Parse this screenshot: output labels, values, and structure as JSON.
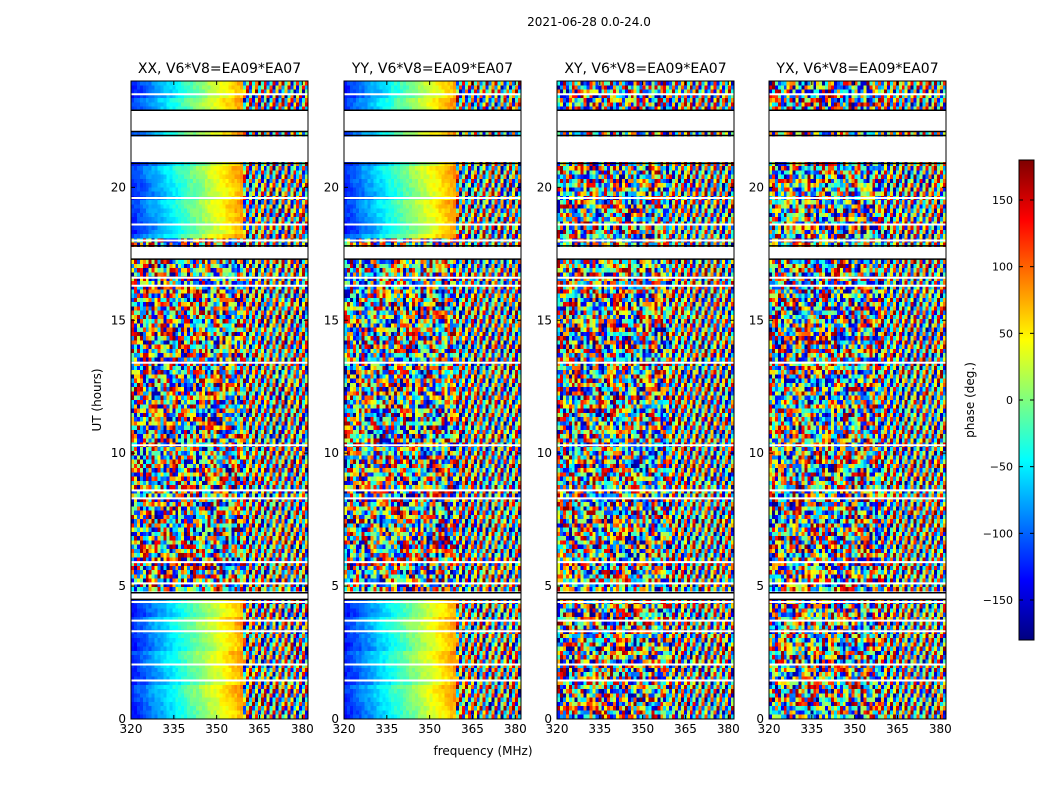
{
  "figure": {
    "suptitle": "2021-06-28 0.0-24.0",
    "ylabel": "UT (hours)",
    "xlabel": "frequency (MHz)"
  },
  "colorbar": {
    "label": "phase (deg.)",
    "range": [
      -180,
      180
    ],
    "ticks": [
      150,
      100,
      50,
      0,
      -50,
      -100,
      -150
    ],
    "tick_labels": [
      "150",
      "100",
      "50",
      "0",
      "−50",
      "−100",
      "−150"
    ],
    "colormap": "jet",
    "colors": [
      "#00007f",
      "#0000ff",
      "#007fff",
      "#00ffff",
      "#7fff7f",
      "#ffff00",
      "#ff7f00",
      "#ff0000",
      "#7f0000"
    ]
  },
  "chart_data": [
    {
      "type": "heatmap",
      "title": "XX, V6*V8=EA09*EA07",
      "xlim": [
        320,
        382
      ],
      "ylim": [
        0,
        24
      ],
      "xticks": [
        320,
        335,
        350,
        365,
        380
      ],
      "yticks": [
        0,
        5,
        10,
        15,
        20
      ],
      "pattern": "parallel"
    },
    {
      "type": "heatmap",
      "title": "YY, V6*V8=EA09*EA07",
      "xlim": [
        320,
        382
      ],
      "ylim": [
        0,
        24
      ],
      "xticks": [
        320,
        335,
        350,
        365,
        380
      ],
      "yticks": [
        0,
        5,
        10,
        15,
        20
      ],
      "pattern": "parallel"
    },
    {
      "type": "heatmap",
      "title": "XY, V6*V8=EA09*EA07",
      "xlim": [
        320,
        382
      ],
      "ylim": [
        0,
        24
      ],
      "xticks": [
        320,
        335,
        350,
        365,
        380
      ],
      "yticks": [
        0,
        5,
        10,
        15,
        20
      ],
      "pattern": "cross"
    },
    {
      "type": "heatmap",
      "title": "YX, V6*V8=EA09*EA07",
      "xlim": [
        320,
        382
      ],
      "ylim": [
        0,
        24
      ],
      "xticks": [
        320,
        335,
        350,
        365,
        380
      ],
      "yticks": [
        0,
        5,
        10,
        15,
        20
      ],
      "pattern": "cross"
    }
  ],
  "time_gaps_hours": [
    [
      22.9,
      22.1
    ],
    [
      21.95,
      20.9
    ],
    [
      17.8,
      17.3
    ],
    [
      4.75,
      4.5
    ]
  ],
  "flagged_rows_hours": [
    18.0,
    18.6,
    19.6,
    16.6,
    16.3,
    13.4,
    10.3,
    8.6,
    8.3,
    5.9,
    5.1,
    4.4,
    3.7,
    3.3,
    2.05,
    1.45,
    23.5
  ]
}
